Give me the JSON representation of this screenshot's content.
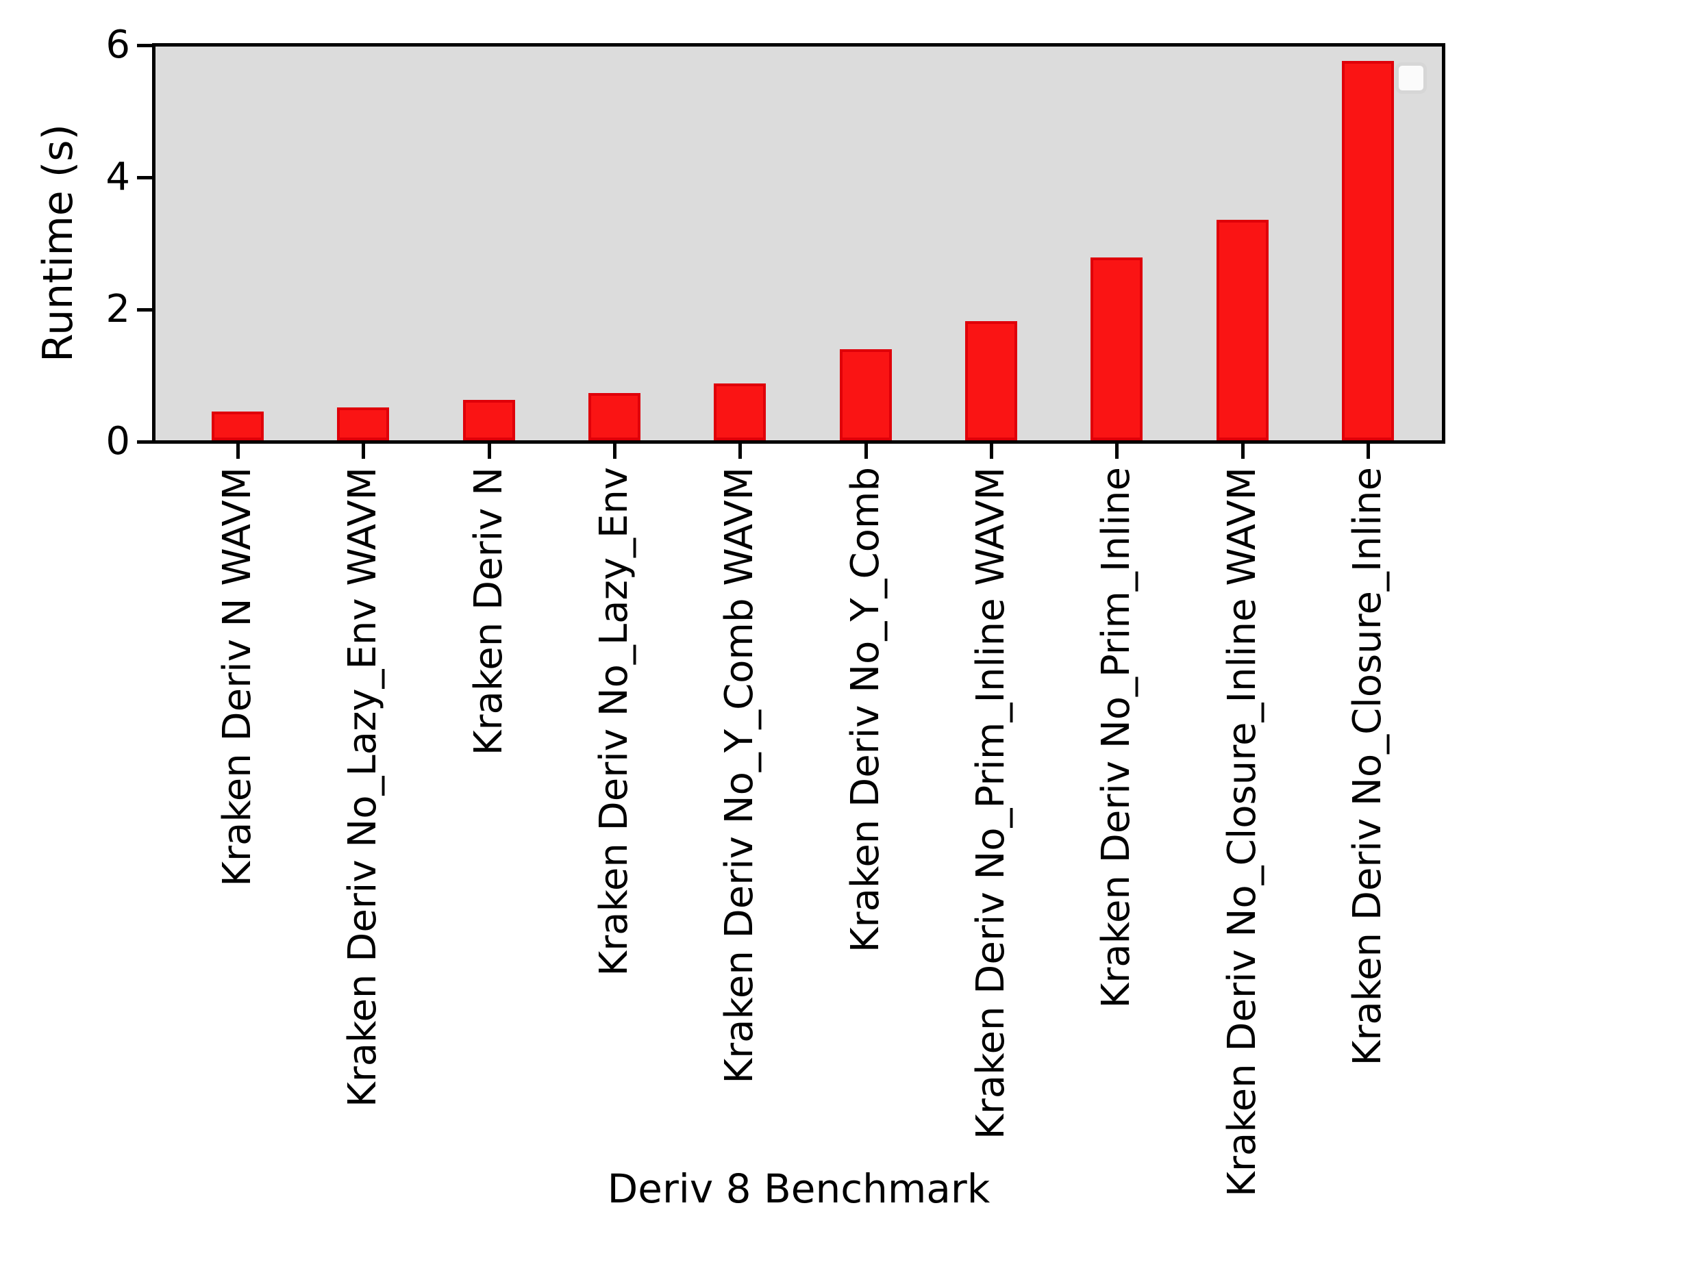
{
  "chart_data": {
    "type": "bar",
    "title": "",
    "xlabel": "Deriv 8 Benchmark",
    "ylabel": "Runtime (s)",
    "categories": [
      "Kraken Deriv N WAVM",
      "Kraken Deriv No_Lazy_Env WAVM",
      "Kraken Deriv N",
      "Kraken Deriv No_Lazy_Env",
      "Kraken Deriv No_Y_Comb WAVM",
      "Kraken Deriv No_Y_Comb",
      "Kraken Deriv No_Prim_Inline WAVM",
      "Kraken Deriv No_Prim_Inline",
      "Kraken Deriv No_Closure_Inline WAVM",
      "Kraken Deriv No_Closure_Inline"
    ],
    "values": [
      0.44,
      0.5,
      0.61,
      0.72,
      0.86,
      1.38,
      1.8,
      2.77,
      3.34,
      5.74
    ],
    "yticks": [
      "0",
      "2",
      "4",
      "6"
    ],
    "ylim": [
      0,
      6
    ],
    "grid": "off",
    "legend_position": "upper right",
    "legend_entries": [],
    "colors": {
      "bar_fill": "#fa1414",
      "bar_edge": "#df0009",
      "plot_background": "#dcdcdc",
      "axis": "#000000",
      "legend_background": "#fbfbfb",
      "legend_border": "#d6d6d6"
    }
  }
}
